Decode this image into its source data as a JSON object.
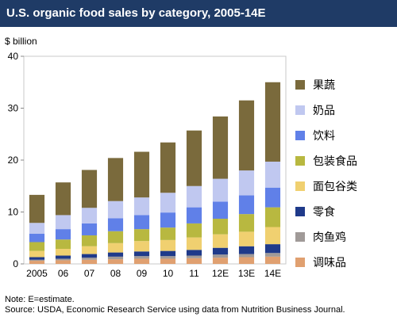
{
  "header": {
    "title": "U.S. organic food sales by category, 2005-14E"
  },
  "notes": {
    "note": "Note: E=estimate.",
    "source": "Source: USDA, Economic Research Service using data from Nutrition Business Journal."
  },
  "chart_data": {
    "type": "bar",
    "stacked": true,
    "title": "U.S. organic food sales by category, 2005-14E",
    "ylabel": "$ billion",
    "xlabel": "",
    "ylim": [
      0,
      40
    ],
    "yticks": [
      0,
      10,
      20,
      30,
      40
    ],
    "grid": false,
    "legend_position": "right",
    "categories": [
      "2005",
      "06",
      "07",
      "08",
      "09",
      "10",
      "11",
      "12E",
      "13E",
      "14E"
    ],
    "series": [
      {
        "name": "调味品",
        "color": "#e0a070",
        "values": [
          0.6,
          0.7,
          0.8,
          0.9,
          1.0,
          1.0,
          1.1,
          1.2,
          1.3,
          1.4
        ]
      },
      {
        "name": "肉鱼鸡",
        "color": "#a09a98",
        "values": [
          0.2,
          0.3,
          0.4,
          0.5,
          0.5,
          0.5,
          0.5,
          0.6,
          0.6,
          0.7
        ]
      },
      {
        "name": "零食",
        "color": "#1f3a8a",
        "values": [
          0.5,
          0.6,
          0.7,
          0.8,
          0.9,
          1.0,
          1.1,
          1.3,
          1.5,
          1.7
        ]
      },
      {
        "name": "面包谷类",
        "color": "#f0d070",
        "values": [
          1.2,
          1.3,
          1.5,
          1.8,
          2.0,
          2.1,
          2.4,
          2.6,
          2.8,
          3.3
        ]
      },
      {
        "name": "包装食品",
        "color": "#b8b840",
        "values": [
          1.7,
          1.8,
          2.1,
          2.3,
          2.3,
          2.4,
          2.7,
          3.0,
          3.4,
          3.8
        ]
      },
      {
        "name": "饮料",
        "color": "#6080e8",
        "values": [
          1.6,
          2.0,
          2.3,
          2.5,
          2.7,
          2.9,
          3.1,
          3.3,
          3.6,
          3.8
        ]
      },
      {
        "name": "奶品",
        "color": "#c0c8f0",
        "values": [
          2.1,
          2.7,
          3.0,
          3.3,
          3.4,
          3.8,
          4.1,
          4.4,
          4.8,
          5.0
        ]
      },
      {
        "name": "果蔬",
        "color": "#7a6a3c",
        "values": [
          5.4,
          6.3,
          7.3,
          8.3,
          8.8,
          9.7,
          10.7,
          12.0,
          13.5,
          15.3
        ]
      }
    ]
  }
}
